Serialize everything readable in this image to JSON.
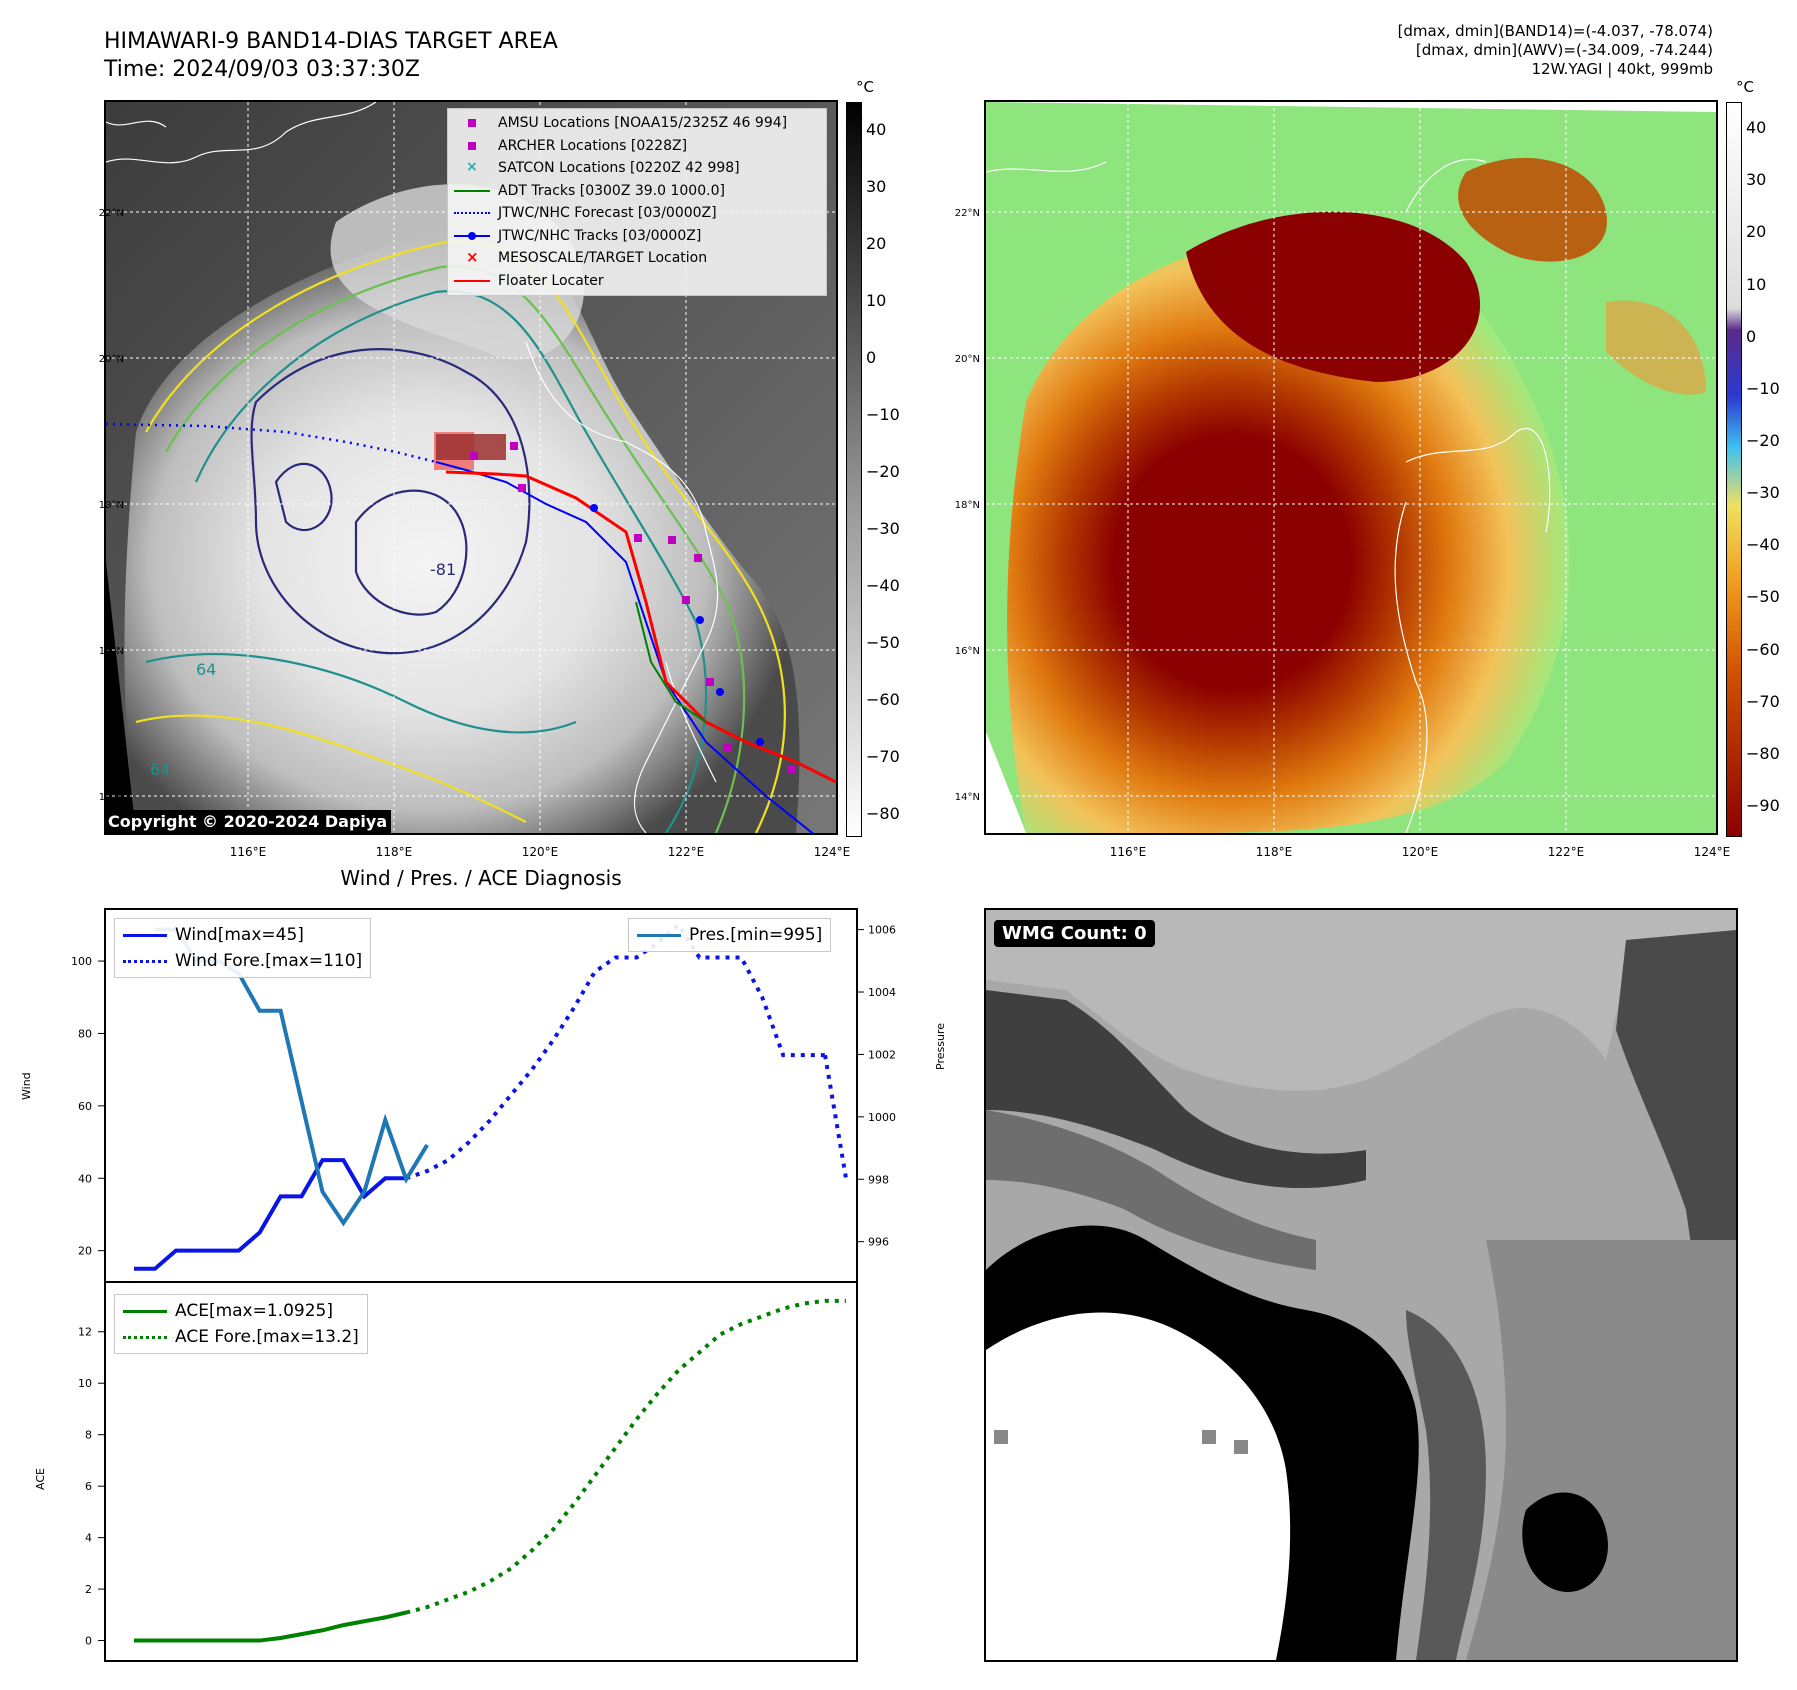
{
  "ir_panel": {
    "title_line1": "HIMAWARI-9 BAND14-DIAS TARGET AREA",
    "title_line2": "Time: 2024/09/03 03:37:30Z",
    "copyright": "Copyright © 2020-2024 Dapiya",
    "colorbar_unit": "°C",
    "colorbar_ticks": [
      "40",
      "30",
      "20",
      "10",
      "0",
      "−10",
      "−20",
      "−30",
      "−40",
      "−50",
      "−60",
      "−70",
      "−80"
    ],
    "lat_ticks": [
      "22°N",
      "20°N",
      "18°N",
      "16°N",
      "14°N"
    ],
    "lon_ticks": [
      "116°E",
      "118°E",
      "120°E",
      "122°E",
      "124°E"
    ],
    "contour_labels": [
      "-81",
      "64",
      "64"
    ],
    "legend": [
      {
        "label": "AMSU Locations [NOAA15/2325Z 46 994]",
        "color": "#c000c0"
      },
      {
        "label": "ARCHER Locations [0228Z]",
        "color": "#c000c0"
      },
      {
        "label": "SATCON Locations [0220Z 42 998]",
        "color": "#20b0b0"
      },
      {
        "label": "ADT Tracks [0300Z 39.0 1000.0]",
        "color": "#008000"
      },
      {
        "label": "JTWC/NHC Forecast [03/0000Z]",
        "color": "#0000ff"
      },
      {
        "label": "JTWC/NHC Tracks [03/0000Z]",
        "color": "#0000ff"
      },
      {
        "label": "MESOSCALE/TARGET Location",
        "color": "#ff0000"
      },
      {
        "label": "Floater Locater",
        "color": "#ff0000"
      }
    ]
  },
  "awv_panel": {
    "info_line1": "[dmax, dmin](BAND14)=(-4.037, -78.074)",
    "info_line2": "[dmax, dmin](AWV)=(-34.009, -74.244)",
    "info_line3": "12W.YAGI | 40kt, 999mb",
    "colorbar_unit": "°C",
    "colorbar_ticks": [
      "40",
      "30",
      "20",
      "10",
      "0",
      "−10",
      "−20",
      "−30",
      "−40",
      "−50",
      "−60",
      "−70",
      "−80",
      "−90"
    ],
    "lat_ticks": [
      "22°N",
      "20°N",
      "18°N",
      "16°N",
      "14°N"
    ],
    "lon_ticks": [
      "116°E",
      "118°E",
      "120°E",
      "122°E",
      "124°E"
    ]
  },
  "wmg_panel": {
    "label": "WMG Count: 0"
  },
  "chart_data": [
    {
      "type": "line",
      "title": "Wind / Pres. / ACE Diagnosis",
      "ylabel": "Wind",
      "y2label": "Pressure",
      "ylim": [
        13,
        113
      ],
      "y2lim": [
        994.9,
        1006.5
      ],
      "yticks": [
        "20",
        "40",
        "60",
        "80",
        "100"
      ],
      "y2ticks": [
        "996",
        "998",
        "1000",
        "1002",
        "1004",
        "1006"
      ],
      "series": [
        {
          "name": "Wind[max=45]",
          "style": "solid",
          "color": "#0a14e6",
          "x": [
            0,
            1,
            2,
            3,
            4,
            5,
            6,
            7,
            8,
            9,
            10,
            11,
            12,
            13,
            14
          ],
          "values": [
            15,
            15,
            20,
            20,
            20,
            20,
            25,
            35,
            35,
            45,
            45,
            35,
            40,
            40,
            null
          ]
        },
        {
          "name": "Wind Fore.[max=110]",
          "style": "dotted",
          "color": "#0a14e6",
          "x": [
            13,
            14,
            15,
            16,
            17,
            18,
            19,
            20,
            21,
            22,
            23,
            24,
            25,
            26,
            27,
            28,
            29,
            30,
            31,
            32,
            33
          ],
          "values": [
            40,
            42,
            45,
            50,
            56,
            63,
            70,
            78,
            87,
            97,
            101,
            101,
            105,
            110,
            101,
            101,
            101,
            90,
            74,
            74,
            74
          ]
        },
        {
          "name": "Pres.[min=995]",
          "style": "solid",
          "color": "#1f77b4",
          "axis": "right",
          "x": [
            1,
            2,
            3,
            4,
            5,
            6,
            7,
            8,
            9,
            10,
            11,
            12,
            13,
            14
          ],
          "values": [
            1006,
            1006,
            1005,
            1005,
            1004.6,
            1003.4,
            1003.4,
            1000.5,
            997.6,
            996.6,
            997.6,
            999.9,
            998.0,
            999.1
          ]
        }
      ],
      "extra_forecast_tail": {
        "x": [
          33,
          34
        ],
        "values": [
          74,
          40
        ]
      }
    },
    {
      "type": "line",
      "ylabel": "ACE",
      "ylim": [
        -0.6,
        13.7
      ],
      "yticks": [
        "0",
        "2",
        "4",
        "6",
        "8",
        "10",
        "12"
      ],
      "series": [
        {
          "name": "ACE[max=1.0925]",
          "style": "solid",
          "color": "#008000",
          "x": [
            0,
            1,
            2,
            3,
            4,
            5,
            6,
            7,
            8,
            9,
            10,
            11,
            12,
            13
          ],
          "values": [
            0,
            0,
            0,
            0,
            0,
            0,
            0,
            0.1,
            0.25,
            0.4,
            0.6,
            0.75,
            0.9,
            1.09
          ]
        },
        {
          "name": "ACE Fore.[max=13.2]",
          "style": "dotted",
          "color": "#008000",
          "x": [
            13,
            14,
            15,
            16,
            17,
            18,
            19,
            20,
            21,
            22,
            23,
            24,
            25,
            26,
            27,
            28,
            29,
            30,
            31,
            32,
            33,
            34
          ],
          "values": [
            1.09,
            1.3,
            1.6,
            1.9,
            2.3,
            2.8,
            3.5,
            4.3,
            5.3,
            6.4,
            7.5,
            8.6,
            9.6,
            10.5,
            11.2,
            11.9,
            12.3,
            12.6,
            12.9,
            13.1,
            13.2,
            13.2
          ]
        }
      ]
    }
  ]
}
